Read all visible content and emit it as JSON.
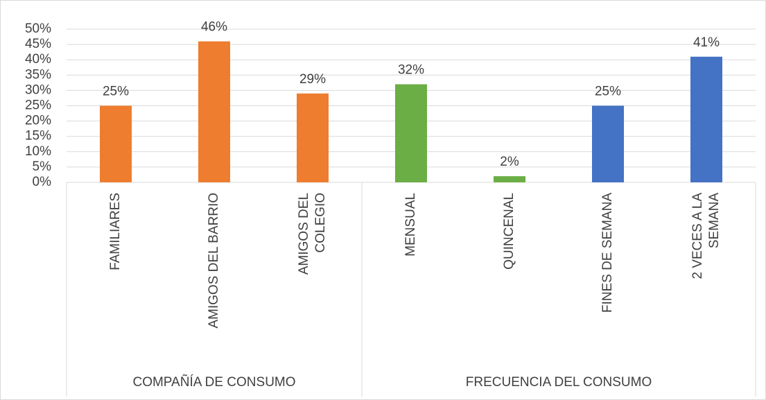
{
  "chart_data": {
    "type": "bar",
    "groups": [
      {
        "name": "COMPAÑÍA DE CONSUMO",
        "categories": [
          "FAMILIARES",
          "AMIGOS DEL BARRIO",
          "AMIGOS DEL\nCOLEGIO"
        ],
        "values": [
          25,
          46,
          29
        ],
        "value_labels": [
          "25%",
          "46%",
          "29%"
        ],
        "colors": [
          "#ee7d2f",
          "#ee7d2f",
          "#ee7d2f"
        ]
      },
      {
        "name": "FRECUENCIA DEL CONSUMO",
        "categories": [
          "MENSUAL",
          "QUINCENAL",
          "FINES DE SEMANA",
          "2 VECES A LA\nSEMANA"
        ],
        "values": [
          32,
          2,
          25,
          41
        ],
        "value_labels": [
          "32%",
          "2%",
          "25%",
          "41%"
        ],
        "colors": [
          "#6aae45",
          "#6aae45",
          "#4472c4",
          "#4472c4"
        ]
      }
    ],
    "ylim": [
      0,
      50
    ],
    "yticks": [
      {
        "value": 0,
        "label": "0%"
      },
      {
        "value": 5,
        "label": "5%"
      },
      {
        "value": 10,
        "label": "10%"
      },
      {
        "value": 15,
        "label": "15%"
      },
      {
        "value": 20,
        "label": "20%"
      },
      {
        "value": 25,
        "label": "25%"
      },
      {
        "value": 30,
        "label": "30%"
      },
      {
        "value": 35,
        "label": "35%"
      },
      {
        "value": 40,
        "label": "40%"
      },
      {
        "value": 45,
        "label": "45%"
      },
      {
        "value": 50,
        "label": "50%"
      }
    ],
    "grid": true
  }
}
